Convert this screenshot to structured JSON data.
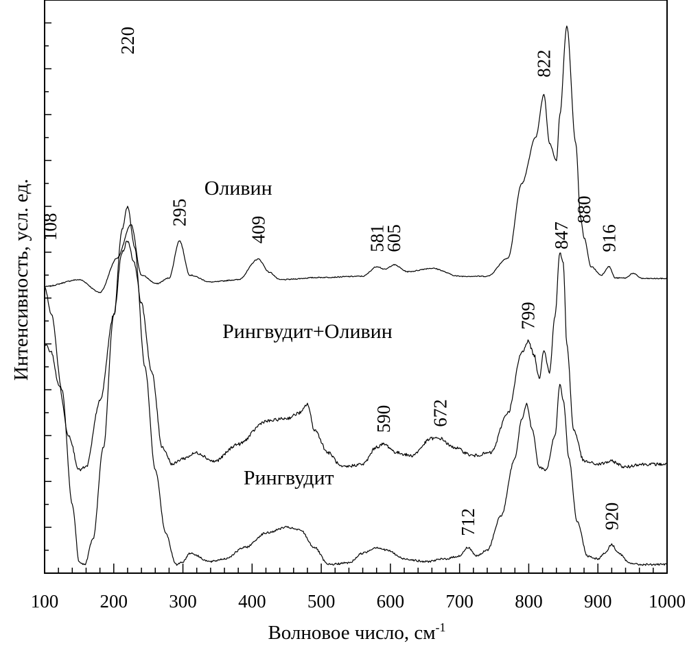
{
  "chart_data": {
    "type": "line",
    "xlabel": "Волновое число, см",
    "xlabel_sup": "-1",
    "ylabel": "Интенсивность, усл. ед.",
    "xlim": [
      100,
      1000
    ],
    "ylim": [
      0,
      100
    ],
    "x_ticks": [
      100,
      200,
      300,
      400,
      500,
      600,
      700,
      800,
      900,
      1000
    ],
    "x_minor_step": 20,
    "y_ticks_unlabeled": true,
    "grid": false,
    "legend": "none",
    "series": [
      {
        "name": "Оливин",
        "label_at": [
          380,
          66.0
        ],
        "points": [
          [
            100,
            50.0
          ],
          [
            150,
            51.2
          ],
          [
            180,
            49.0
          ],
          [
            205,
            55.0
          ],
          [
            225,
            60.8
          ],
          [
            240,
            52.0
          ],
          [
            262,
            50.5
          ],
          [
            280,
            51.5
          ],
          [
            295,
            58.0
          ],
          [
            310,
            52.0
          ],
          [
            340,
            50.8
          ],
          [
            380,
            51.2
          ],
          [
            409,
            54.8
          ],
          [
            425,
            52.5
          ],
          [
            440,
            51.2
          ],
          [
            500,
            51.6
          ],
          [
            560,
            51.8
          ],
          [
            581,
            53.5
          ],
          [
            592,
            53.0
          ],
          [
            605,
            53.8
          ],
          [
            625,
            52.6
          ],
          [
            660,
            53.2
          ],
          [
            700,
            51.8
          ],
          [
            740,
            51.8
          ],
          [
            770,
            55.0
          ],
          [
            790,
            68.0
          ],
          [
            810,
            76.0
          ],
          [
            822,
            83.5
          ],
          [
            830,
            75.0
          ],
          [
            840,
            72.0
          ],
          [
            845,
            80.0
          ],
          [
            855,
            95.5
          ],
          [
            868,
            75.0
          ],
          [
            875,
            62.0
          ],
          [
            880,
            58.5
          ],
          [
            890,
            53.5
          ],
          [
            905,
            52.0
          ],
          [
            916,
            53.5
          ],
          [
            925,
            51.5
          ],
          [
            940,
            51.5
          ],
          [
            950,
            52.3
          ],
          [
            965,
            51.4
          ],
          [
            1000,
            51.4
          ]
        ],
        "peaks": [
          {
            "label": "220",
            "x": 220,
            "y": 90.5
          },
          {
            "label": "295",
            "x": 295,
            "y": 60.5
          },
          {
            "label": "409",
            "x": 409,
            "y": 57.5
          },
          {
            "label": "581",
            "x": 581,
            "y": 56.0
          },
          {
            "label": "605",
            "x": 605,
            "y": 56.0
          },
          {
            "label": "822",
            "x": 822,
            "y": 86.5
          },
          {
            "label": "880",
            "x": 880,
            "y": 61.0
          },
          {
            "label": "916",
            "x": 916,
            "y": 56.0
          }
        ]
      },
      {
        "name": "Рингвудит+Оливин",
        "label_at": [
          480,
          41.0
        ],
        "points": [
          [
            100,
            40.0
          ],
          [
            110,
            38.5
          ],
          [
            120,
            33.0
          ],
          [
            135,
            24.0
          ],
          [
            150,
            18.0
          ],
          [
            160,
            18.5
          ],
          [
            180,
            30.0
          ],
          [
            200,
            45.0
          ],
          [
            212,
            56.0
          ],
          [
            220,
            58.0
          ],
          [
            230,
            54.0
          ],
          [
            240,
            47.0
          ],
          [
            255,
            35.0
          ],
          [
            270,
            22.0
          ],
          [
            285,
            19.0
          ],
          [
            300,
            20.0
          ],
          [
            320,
            21.0
          ],
          [
            345,
            19.5
          ],
          [
            380,
            22.5
          ],
          [
            420,
            26.5
          ],
          [
            450,
            27.0
          ],
          [
            470,
            28.0
          ],
          [
            480,
            29.5
          ],
          [
            490,
            25.0
          ],
          [
            510,
            21.0
          ],
          [
            530,
            18.5
          ],
          [
            560,
            19.0
          ],
          [
            580,
            22.0
          ],
          [
            590,
            22.5
          ],
          [
            610,
            21.0
          ],
          [
            630,
            20.5
          ],
          [
            660,
            23.5
          ],
          [
            672,
            23.5
          ],
          [
            690,
            22.0
          ],
          [
            720,
            20.5
          ],
          [
            745,
            21.0
          ],
          [
            770,
            28.0
          ],
          [
            790,
            38.5
          ],
          [
            799,
            40.5
          ],
          [
            808,
            38.0
          ],
          [
            815,
            34.0
          ],
          [
            822,
            39.0
          ],
          [
            830,
            35.0
          ],
          [
            838,
            45.0
          ],
          [
            845,
            56.0
          ],
          [
            850,
            54.0
          ],
          [
            855,
            40.0
          ],
          [
            865,
            25.0
          ],
          [
            880,
            19.5
          ],
          [
            900,
            19.0
          ],
          [
            920,
            19.5
          ],
          [
            940,
            18.5
          ],
          [
            960,
            19.0
          ],
          [
            1000,
            19.0
          ]
        ],
        "peaks": [
          {
            "label": "590",
            "x": 590,
            "y": 24.5
          },
          {
            "label": "672",
            "x": 672,
            "y": 25.5
          },
          {
            "label": "799",
            "x": 799,
            "y": 42.5
          },
          {
            "label": "847",
            "x": 847,
            "y": 56.5
          }
        ]
      },
      {
        "name": "Рингвудит",
        "label_at": [
          453,
          15.5
        ],
        "points": [
          [
            100,
            50.0
          ],
          [
            110,
            45.0
          ],
          [
            125,
            32.0
          ],
          [
            140,
            12.0
          ],
          [
            150,
            2.0
          ],
          [
            158,
            1.5
          ],
          [
            170,
            6.0
          ],
          [
            185,
            22.0
          ],
          [
            200,
            45.0
          ],
          [
            212,
            60.0
          ],
          [
            220,
            64.0
          ],
          [
            230,
            57.0
          ],
          [
            245,
            36.0
          ],
          [
            260,
            18.0
          ],
          [
            275,
            7.0
          ],
          [
            290,
            1.5
          ],
          [
            300,
            2.0
          ],
          [
            310,
            3.5
          ],
          [
            340,
            2.0
          ],
          [
            360,
            2.5
          ],
          [
            390,
            4.5
          ],
          [
            420,
            7.0
          ],
          [
            450,
            8.0
          ],
          [
            470,
            7.5
          ],
          [
            490,
            4.5
          ],
          [
            510,
            1.5
          ],
          [
            540,
            1.8
          ],
          [
            560,
            3.5
          ],
          [
            580,
            4.5
          ],
          [
            595,
            4.0
          ],
          [
            620,
            2.5
          ],
          [
            650,
            2.0
          ],
          [
            680,
            2.5
          ],
          [
            700,
            3.0
          ],
          [
            712,
            4.5
          ],
          [
            725,
            3.0
          ],
          [
            740,
            4.0
          ],
          [
            760,
            10.0
          ],
          [
            780,
            20.0
          ],
          [
            790,
            27.0
          ],
          [
            797,
            29.5
          ],
          [
            805,
            25.0
          ],
          [
            815,
            18.5
          ],
          [
            825,
            18.0
          ],
          [
            838,
            24.0
          ],
          [
            845,
            33.0
          ],
          [
            850,
            30.0
          ],
          [
            858,
            20.0
          ],
          [
            870,
            9.0
          ],
          [
            885,
            3.0
          ],
          [
            900,
            2.5
          ],
          [
            910,
            3.5
          ],
          [
            920,
            5.0
          ],
          [
            930,
            3.5
          ],
          [
            945,
            1.8
          ],
          [
            960,
            1.5
          ],
          [
            1000,
            1.5
          ]
        ],
        "peaks": [
          {
            "label": "108",
            "x": 108,
            "y": 58.0
          },
          {
            "label": "712",
            "x": 712,
            "y": 6.5
          },
          {
            "label": "920",
            "x": 920,
            "y": 7.5
          }
        ]
      }
    ]
  }
}
